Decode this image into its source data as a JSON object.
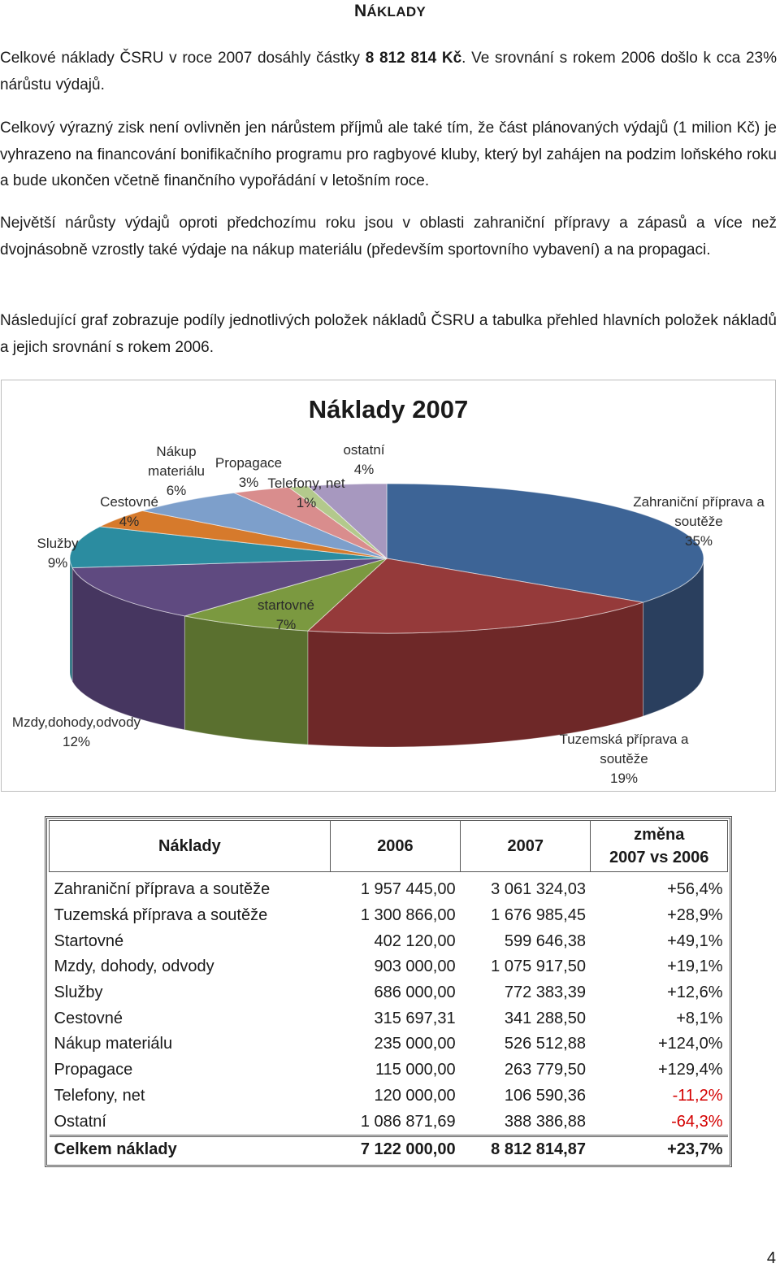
{
  "heading": {
    "first": "N",
    "rest": "ÁKLADY"
  },
  "p1": {
    "a": "Celkové náklady ČSRU v roce 2007 dosáhly částky ",
    "b": "8 812 814 Kč",
    "c": ". Ve srovnání s rokem 2006 došlo k cca 23% nárůstu výdajů."
  },
  "p2": "Celkový výrazný zisk není ovlivněn jen nárůstem příjmů ale také tím, že část plánovaných výdajů (1 milion Kč) je vyhrazeno na financování bonifikačního programu pro ragbyové kluby, který byl zahájen na podzim loňského roku a bude ukončen včetně finančního vypořádání v letošním roce.",
  "p3": "Největší nárůsty výdajů oproti předchozímu roku jsou v oblasti zahraniční přípravy a zápasů a více než dvojnásobně vzrostly také výdaje na nákup materiálu (především sportovního vybavení) a na propagaci.",
  "p4": "Následující graf zobrazuje podíly jednotlivých položek nákladů ČSRU a tabulka přehled hlavních položek nákladů a jejich srovnání s rokem 2006.",
  "chart_data": {
    "type": "pie",
    "title": "Náklady 2007",
    "slices": [
      {
        "label": "Zahraniční příprava a soutěže",
        "pct": "35%",
        "value": 35,
        "color": "#3d6496",
        "side": "#2a3f5e"
      },
      {
        "label": "Tuzemská příprava a soutěže",
        "pct": "19%",
        "value": 19,
        "color": "#953a3a",
        "side": "#6e2828"
      },
      {
        "label": "startovné",
        "pct": "7%",
        "value": 7,
        "color": "#7b9940",
        "side": "#5a702f"
      },
      {
        "label": "Mzdy,dohody,odvody",
        "pct": "12%",
        "value": 12,
        "color": "#5f4a80",
        "side": "#463660"
      },
      {
        "label": "Služby",
        "pct": "9%",
        "value": 9,
        "color": "#2b8ca0",
        "side": "#1f6a78"
      },
      {
        "label": "Cestovné",
        "pct": "4%",
        "value": 4,
        "color": "#d67a2c",
        "side": "#a85c1f"
      },
      {
        "label": "Nákup materiálu",
        "pct": "6%",
        "value": 6,
        "color": "#7d9fcb",
        "side": "#5e7ea6"
      },
      {
        "label": "Propagace",
        "pct": "3%",
        "value": 3,
        "color": "#d98d8d",
        "side": "#b06c6c"
      },
      {
        "label": "Telefony, net",
        "pct": "1%",
        "value": 1,
        "color": "#b3c98c",
        "side": "#8ea36b"
      },
      {
        "label": "ostatní",
        "pct": "4%",
        "value": 4,
        "color": "#a798bf",
        "side": "#857999"
      }
    ]
  },
  "table": {
    "headers": {
      "name": "Náklady",
      "y2006": "2006",
      "y2007": "2007",
      "change_line1": "změna",
      "change_line2": "2007 vs 2006"
    },
    "rows": [
      [
        "Zahraniční příprava a soutěže",
        "1 957 445,00",
        "3 061 324,03",
        "+56,4%"
      ],
      [
        "Tuzemská příprava a soutěže",
        "1 300 866,00",
        "1 676 985,45",
        "+28,9%"
      ],
      [
        "Startovné",
        "402 120,00",
        "599 646,38",
        "+49,1%"
      ],
      [
        "Mzdy, dohody, odvody",
        "903 000,00",
        "1 075 917,50",
        "+19,1%"
      ],
      [
        "Služby",
        "686 000,00",
        "772 383,39",
        "+12,6%"
      ],
      [
        "Cestovné",
        "315 697,31",
        "341 288,50",
        "+8,1%"
      ],
      [
        "Nákup materiálu",
        "235 000,00",
        "526 512,88",
        "+124,0%"
      ],
      [
        "Propagace",
        "115 000,00",
        "263 779,50",
        "+129,4%"
      ],
      [
        "Telefony, net",
        "120 000,00",
        "106 590,36",
        "-11,2%"
      ],
      [
        "Ostatní",
        "1 086 871,69",
        "388 386,88",
        "-64,3%"
      ]
    ],
    "total": [
      "Celkem náklady",
      "7 122 000,00",
      "8 812 814,87",
      "+23,7%"
    ],
    "negative_color": "#d40000"
  },
  "page_number": "4"
}
